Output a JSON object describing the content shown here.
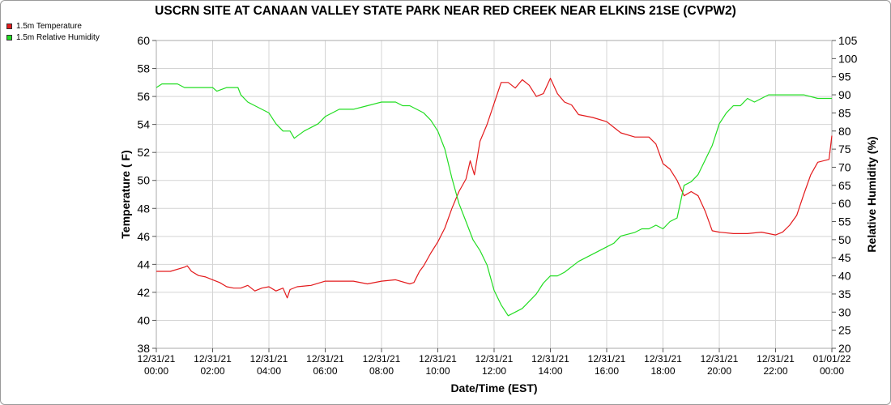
{
  "chart_data": {
    "type": "line",
    "title": "USCRN SITE AT CANAAN VALLEY STATE PARK NEAR RED CREEK NEAR ELKINS 21SE (CVPW2)",
    "xlabel": "Date/Time (EST)",
    "ylabel_left": "Temperature ( F)",
    "ylabel_right": "Relative Humidity (%)",
    "ylim_left": [
      38,
      60
    ],
    "ylim_right": [
      20,
      105
    ],
    "yticks_left": [
      "38",
      "40",
      "42",
      "44",
      "46",
      "48",
      "50",
      "52",
      "54",
      "56",
      "58",
      "60"
    ],
    "yticks_right": [
      "20",
      "25",
      "30",
      "35",
      "40",
      "45",
      "50",
      "55",
      "60",
      "65",
      "70",
      "75",
      "80",
      "85",
      "90",
      "95",
      "100",
      "105"
    ],
    "x_range_hours": [
      0,
      24
    ],
    "xticks": [
      {
        "date": "12/31/21",
        "time": "00:00"
      },
      {
        "date": "12/31/21",
        "time": "02:00"
      },
      {
        "date": "12/31/21",
        "time": "04:00"
      },
      {
        "date": "12/31/21",
        "time": "06:00"
      },
      {
        "date": "12/31/21",
        "time": "08:00"
      },
      {
        "date": "12/31/21",
        "time": "10:00"
      },
      {
        "date": "12/31/21",
        "time": "12:00"
      },
      {
        "date": "12/31/21",
        "time": "14:00"
      },
      {
        "date": "12/31/21",
        "time": "16:00"
      },
      {
        "date": "12/31/21",
        "time": "18:00"
      },
      {
        "date": "12/31/21",
        "time": "20:00"
      },
      {
        "date": "12/31/21",
        "time": "22:00"
      },
      {
        "date": "01/01/22",
        "time": "00:00"
      }
    ],
    "grid": true,
    "legend_position": "top-left",
    "series": [
      {
        "name": "1.5m Temperature",
        "color": "#e31a1c",
        "axis": "left",
        "x": [
          0,
          0.5,
          1,
          1.1,
          1.25,
          1.5,
          1.75,
          2,
          2.25,
          2.5,
          2.75,
          3,
          3.25,
          3.5,
          3.75,
          4,
          4.25,
          4.5,
          4.65,
          4.75,
          5,
          5.5,
          6,
          6.5,
          7,
          7.5,
          8,
          8.5,
          9,
          9.15,
          9.35,
          9.5,
          9.75,
          10,
          10.25,
          10.5,
          10.75,
          11,
          11.15,
          11.3,
          11.5,
          11.75,
          12,
          12.25,
          12.5,
          12.75,
          13,
          13.25,
          13.5,
          13.75,
          14,
          14.25,
          14.5,
          14.75,
          15,
          15.5,
          16,
          16.25,
          16.5,
          17,
          17.5,
          17.75,
          18,
          18.25,
          18.5,
          18.75,
          19,
          19.25,
          19.5,
          19.75,
          20,
          20.5,
          21,
          21.5,
          22,
          22.25,
          22.5,
          22.75,
          23,
          23.25,
          23.5,
          23.9,
          24
        ],
        "y": [
          43.5,
          43.5,
          43.8,
          43.9,
          43.5,
          43.2,
          43.1,
          42.9,
          42.7,
          42.4,
          42.3,
          42.3,
          42.5,
          42.1,
          42.3,
          42.4,
          42.1,
          42.3,
          41.6,
          42.2,
          42.4,
          42.5,
          42.8,
          42.8,
          42.8,
          42.6,
          42.8,
          42.9,
          42.6,
          42.7,
          43.5,
          43.9,
          44.8,
          45.6,
          46.6,
          48.0,
          49.2,
          50.1,
          51.4,
          50.4,
          52.8,
          54.0,
          55.5,
          57.0,
          57.0,
          56.6,
          57.2,
          56.8,
          56.0,
          56.2,
          57.3,
          56.2,
          55.6,
          55.4,
          54.7,
          54.5,
          54.2,
          53.8,
          53.4,
          53.1,
          53.1,
          52.6,
          51.2,
          50.8,
          50.0,
          48.9,
          49.2,
          48.9,
          47.8,
          46.4,
          46.3,
          46.2,
          46.2,
          46.3,
          46.1,
          46.3,
          46.8,
          47.5,
          49.0,
          50.4,
          51.3,
          51.5,
          53.2
        ]
      },
      {
        "name": "1.5m Relative Humidity",
        "color": "#22dd22",
        "axis": "right",
        "x": [
          0,
          0.2,
          0.75,
          1,
          1.5,
          2,
          2.15,
          2.5,
          2.9,
          3,
          3.25,
          3.5,
          4,
          4.25,
          4.5,
          4.75,
          4.9,
          5.25,
          5.5,
          5.75,
          6,
          6.5,
          7,
          7.5,
          8,
          8.5,
          8.75,
          9,
          9.25,
          9.5,
          9.75,
          10,
          10.25,
          10.5,
          10.75,
          11,
          11.25,
          11.5,
          11.75,
          12,
          12.25,
          12.5,
          12.75,
          13,
          13.25,
          13.5,
          13.75,
          14,
          14.25,
          14.5,
          15,
          15.5,
          16,
          16.25,
          16.5,
          17,
          17.25,
          17.5,
          17.75,
          18,
          18.25,
          18.5,
          18.75,
          19,
          19.25,
          19.5,
          19.75,
          20,
          20.25,
          20.5,
          20.75,
          21,
          21.25,
          21.5,
          21.75,
          22,
          22.25,
          22.5,
          23,
          23.5,
          23.9,
          24
        ],
        "y": [
          92,
          93,
          93,
          92,
          92,
          92,
          91,
          92,
          92,
          90,
          88,
          87,
          85,
          82,
          80,
          80,
          78,
          80,
          81,
          82,
          84,
          86,
          86,
          87,
          88,
          88,
          87,
          87,
          86,
          85,
          83,
          80,
          75,
          67,
          60,
          55,
          50,
          47,
          43,
          36,
          32,
          29,
          30,
          31,
          33,
          35,
          38,
          40,
          40,
          41,
          44,
          46,
          48,
          49,
          51,
          52,
          53,
          53,
          54,
          53,
          55,
          56,
          65,
          66,
          68,
          72,
          76,
          82,
          85,
          87,
          87,
          89,
          88,
          89,
          90,
          90,
          90,
          90,
          90,
          89,
          89,
          89
        ]
      }
    ]
  }
}
